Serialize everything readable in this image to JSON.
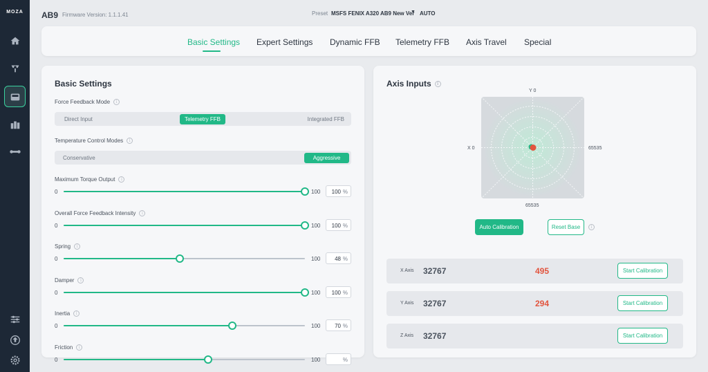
{
  "sidebar": {
    "logo": "MOZA",
    "nav": [
      {
        "name": "home",
        "icon": "home-icon"
      },
      {
        "name": "wheel",
        "icon": "steering-wheel-icon"
      },
      {
        "name": "base",
        "icon": "wheelbase-icon",
        "active": true
      },
      {
        "name": "pedals",
        "icon": "pedals-icon"
      },
      {
        "name": "handbrake",
        "icon": "handbrake-icon"
      }
    ],
    "bottom": [
      {
        "name": "tuning",
        "icon": "sliders-icon"
      },
      {
        "name": "firmware",
        "icon": "firmware-update-icon"
      },
      {
        "name": "settings",
        "icon": "gear-icon"
      }
    ]
  },
  "header": {
    "device": "AB9",
    "firmware": "Firmware Version: 1.1.1.41",
    "preset_label": "Preset",
    "preset_value": "MSFS FENIX A320 AB9 New Ver",
    "preset_mode": "AUTO"
  },
  "tabs": [
    "Basic Settings",
    "Expert Settings",
    "Dynamic FFB",
    "Telemetry FFB",
    "Axis Travel",
    "Special"
  ],
  "active_tab": 0,
  "basic": {
    "title": "Basic Settings",
    "ffb_mode": {
      "label": "Force Feedback Mode",
      "options": [
        "Direct Input",
        "Telemetry FFB",
        "Integrated FFB"
      ],
      "selected": "Telemetry FFB"
    },
    "temp_mode": {
      "label": "Temperature Control Modes",
      "options": [
        "Conservative",
        "Aggressive"
      ],
      "selected": "Aggressive"
    },
    "sliders": [
      {
        "label": "Maximum Torque Output",
        "min": "0",
        "max": "100",
        "value": "100",
        "unit": "%",
        "fraction": 1.0
      },
      {
        "label": "Overall Force Feedback Intensity",
        "min": "0",
        "max": "100",
        "value": "100",
        "unit": "%",
        "fraction": 1.0
      },
      {
        "label": "Spring",
        "min": "0",
        "max": "100",
        "value": "48",
        "unit": "%",
        "fraction": 0.48
      },
      {
        "label": "Damper",
        "min": "0",
        "max": "100",
        "value": "100",
        "unit": "%",
        "fraction": 1.0
      },
      {
        "label": "Inertia",
        "min": "0",
        "max": "100",
        "value": "70",
        "unit": "%",
        "fraction": 0.7
      },
      {
        "label": "Friction",
        "min": "0",
        "max": "100",
        "value": "",
        "unit": "%",
        "fraction": 0.6
      }
    ]
  },
  "axis_inputs": {
    "title": "Axis Inputs",
    "y_min_label": "Y 0",
    "x_min_label": "X 0",
    "x_max_label": "65535",
    "y_max_label": "65535",
    "auto_calibration": "Auto Calibration",
    "reset_base": "Reset Base",
    "axes": [
      {
        "name": "X Axis",
        "center": "32767",
        "raw": "495",
        "button": "Start Calibration"
      },
      {
        "name": "Y Axis",
        "center": "32767",
        "raw": "294",
        "button": "Start Calibration"
      },
      {
        "name": "Z Axis",
        "center": "32767",
        "raw": "",
        "button": "Start Calibration"
      }
    ],
    "colors": {
      "accent": "#21b887",
      "raw": "#e2553f",
      "point": "#e2553f"
    }
  }
}
